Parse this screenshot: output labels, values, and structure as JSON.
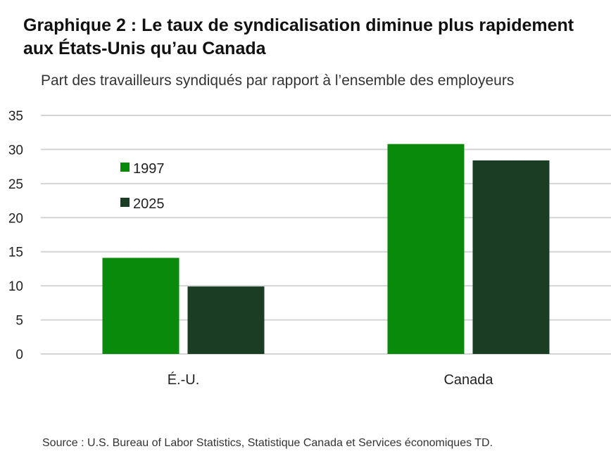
{
  "chart_data": {
    "type": "bar",
    "title": "Graphique 2 : Le taux de syndicalisation diminue plus rapidement aux États-Unis qu’au Canada",
    "subtitle": "Part des travailleurs syndiqués par rapport à l’ensemble des employeurs",
    "categories": [
      "É.-U.",
      "Canada"
    ],
    "series": [
      {
        "name": "1997",
        "values": [
          14.1,
          30.8
        ],
        "color": "#0a8a0a"
      },
      {
        "name": "2025",
        "values": [
          9.9,
          28.4
        ],
        "color": "#1a3d24"
      }
    ],
    "ylim": [
      0,
      35
    ],
    "yticks": [
      "0",
      "5",
      "10",
      "15",
      "20",
      "25",
      "30",
      "35"
    ],
    "ytick_values": [
      0,
      5,
      10,
      15,
      20,
      25,
      30,
      35
    ],
    "grid": true,
    "legend_position": "top-left"
  },
  "source": "Source : U.S. Bureau of Labor Statistics, Statistique Canada et Services économiques TD."
}
